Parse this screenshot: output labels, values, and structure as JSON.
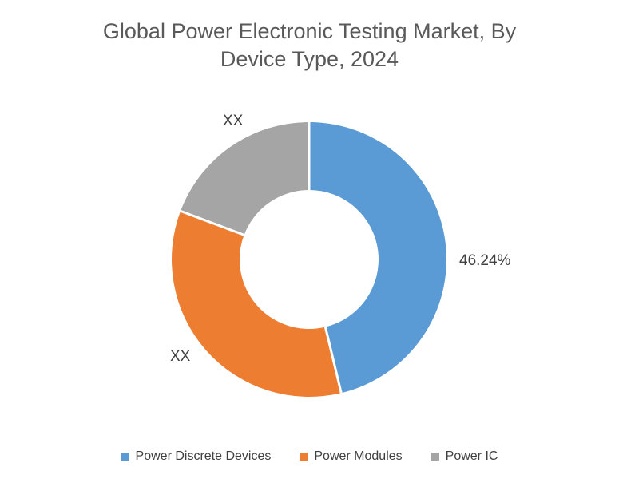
{
  "header": {
    "title": "Global Power Electronic Testing Market, By Device Type, 2024",
    "title_lines": [
      "Global Power Electronic Testing Market, By",
      "Device Type, 2024"
    ],
    "title_color": "#595959"
  },
  "chart_data": {
    "type": "pie",
    "subtype": "donut",
    "title": "Global Power Electronic Testing Market, By Device Type, 2024",
    "start_angle_deg": 0,
    "direction": "clockwise",
    "inner_radius_ratio": 0.51,
    "legend_position": "bottom",
    "slices": [
      {
        "label": "Power Discrete Devices",
        "display_label": "46.24%",
        "value": 46.24,
        "color": "#5B9BD5"
      },
      {
        "label": "Power Modules",
        "display_label": "XX",
        "value": 34.5,
        "color": "#ED7D31"
      },
      {
        "label": "Power IC",
        "display_label": "XX",
        "value": 19.26,
        "color": "#A5A5A5"
      }
    ],
    "colors": {
      "slice_border": "#FFFFFF",
      "slice_label_text": "#404040",
      "legend_text": "#404040",
      "title_text": "#595959"
    }
  }
}
